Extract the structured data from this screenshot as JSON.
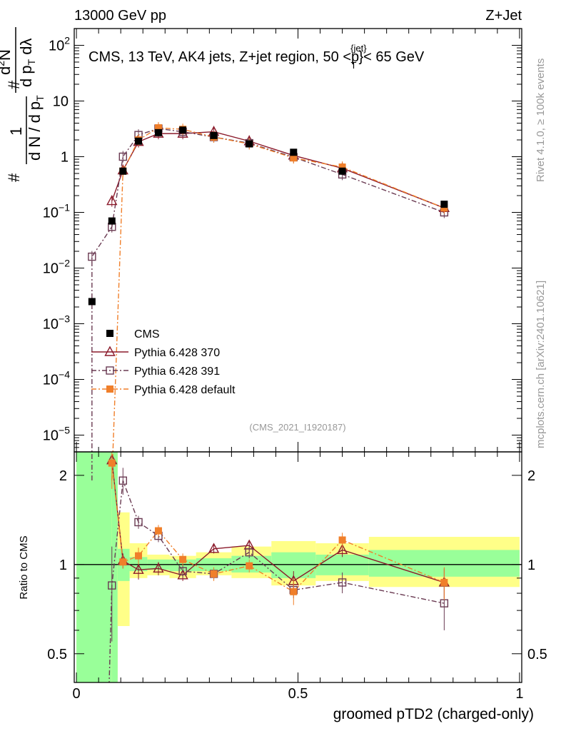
{
  "header": {
    "left": "13000 GeV pp",
    "right": "Z+Jet"
  },
  "side": {
    "rivet": "Rivet 4.1.0, ≥ 100k events",
    "mcplots": "mcplots.cern.ch [arXiv:2401.10621]"
  },
  "chart_data": {
    "type": "scatter",
    "title": "CMS, 13 TeV, AK4 jets, Z+jet region, 50 < p_T^{jet} < 65 GeV",
    "title_parts": {
      "main": "CMS, 13 TeV, AK4 jets, Z+jet region, 50 <p",
      "sub": "T",
      "sup": "{jet}",
      "end": "}< 65 GeV"
    },
    "analysis_tag": "(CMS_2021_I1920187)",
    "xlabel": "groomed pTD2 (charged-only)",
    "ylabel_top": {
      "num": "1",
      "frac_num_prefix": "d",
      "frac_num_sup": "2",
      "frac_num_suffix": "N",
      "den1": "d N / d p",
      "den1_sub": "T",
      "den2": "d p",
      "den2_sub": "T",
      "den2_suffix": " dλ",
      "hash": "#"
    },
    "ylabel_ratio": "Ratio to CMS",
    "xlim": [
      -0.005,
      1.005
    ],
    "ylim_top": [
      5e-06,
      200
    ],
    "ylim_ratio": [
      0.4,
      2.4
    ],
    "x_ticks": [
      0,
      0.5,
      1
    ],
    "x_tick_labels": [
      "0",
      "0.5",
      "1"
    ],
    "y_ticks_top": [
      1e-05,
      0.0001,
      0.001,
      0.01,
      0.1,
      1,
      10,
      100
    ],
    "y_tick_labels_top": [
      {
        "base": "10",
        "exp": "−5"
      },
      {
        "base": "10",
        "exp": "−4"
      },
      {
        "base": "10",
        "exp": "−3"
      },
      {
        "base": "10",
        "exp": "−2"
      },
      {
        "base": "10",
        "exp": "−1"
      },
      {
        "base": "1",
        "exp": ""
      },
      {
        "base": "10",
        "exp": ""
      },
      {
        "base": "10",
        "exp": "2"
      }
    ],
    "y_ticks_ratio": [
      0.5,
      1,
      2
    ],
    "y_tick_labels_ratio": [
      "0.5",
      "1",
      "2"
    ],
    "legend_position": "lower-left",
    "legend": [
      {
        "label": "CMS",
        "color": "#000000",
        "marker": "filled-square",
        "line": "none"
      },
      {
        "label": "Pythia 6.428 370",
        "color": "#8b1a2b",
        "marker": "open-triangle",
        "line": "solid"
      },
      {
        "label": "Pythia 6.428 391",
        "color": "#6a3a52",
        "marker": "open-square",
        "line": "dashdot"
      },
      {
        "label": "Pythia 6.428 default",
        "color": "#f07f2a",
        "marker": "filled-square",
        "line": "dashdot"
      }
    ],
    "x": [
      0.035,
      0.08,
      0.105,
      0.14,
      0.185,
      0.24,
      0.31,
      0.39,
      0.49,
      0.6,
      0.83
    ],
    "data": {
      "name": "CMS",
      "values": [
        0.0025,
        0.07,
        0.55,
        1.9,
        2.7,
        3.0,
        2.4,
        1.7,
        1.2,
        0.55,
        0.14
      ]
    },
    "series": [
      {
        "name": "Pythia 6.428 370",
        "values": [
          null,
          0.16,
          0.57,
          1.85,
          2.6,
          2.6,
          2.8,
          1.9,
          1.05,
          0.62,
          0.12
        ],
        "ratio": [
          null,
          2.25,
          1.03,
          0.96,
          0.97,
          0.92,
          1.13,
          1.16,
          0.88,
          1.12,
          0.87
        ],
        "ratio_err": [
          null,
          0.1,
          0.06,
          0.07,
          0.05,
          0.04,
          0.04,
          0.05,
          0.07,
          0.06,
          0.1
        ]
      },
      {
        "name": "Pythia 6.428 391",
        "values": [
          0.016,
          0.055,
          1.0,
          2.45,
          3.2,
          2.8,
          2.25,
          1.75,
          0.98,
          0.48,
          0.1
        ],
        "ratio": [
          null,
          0.85,
          1.92,
          1.39,
          1.25,
          0.95,
          0.93,
          1.1,
          0.82,
          0.87,
          0.74
        ],
        "ratio_err": [
          null,
          0.3,
          0.2,
          0.07,
          0.06,
          0.05,
          0.04,
          0.05,
          0.05,
          0.07,
          0.14
        ]
      },
      {
        "name": "Pythia 6.428 default",
        "values": [
          null,
          null,
          0.55,
          2.0,
          3.3,
          3.1,
          2.25,
          1.7,
          0.95,
          0.65,
          0.12
        ],
        "ratio": [
          null,
          2.2,
          1.02,
          1.07,
          1.3,
          1.04,
          0.93,
          0.99,
          0.81,
          1.21,
          0.87
        ],
        "ratio_err": [
          null,
          0.4,
          0.05,
          0.07,
          0.06,
          0.05,
          0.05,
          0.05,
          0.08,
          0.07,
          0.11
        ]
      }
    ],
    "ratio_bands": [
      {
        "x0": 0.0,
        "x1": 0.08,
        "inner": [
          0.3,
          2.6
        ],
        "outer": [
          0.3,
          2.6
        ]
      },
      {
        "x0": 0.08,
        "x1": 0.093,
        "inner": [
          0.3,
          2.6
        ],
        "outer": [
          0.3,
          2.6
        ]
      },
      {
        "x0": 0.093,
        "x1": 0.12,
        "inner": [
          0.88,
          1.13
        ],
        "outer": [
          0.62,
          1.5
        ]
      },
      {
        "x0": 0.12,
        "x1": 0.16,
        "inner": [
          0.95,
          1.06
        ],
        "outer": [
          0.9,
          1.18
        ]
      },
      {
        "x0": 0.16,
        "x1": 0.21,
        "inner": [
          0.96,
          1.04
        ],
        "outer": [
          0.92,
          1.08
        ]
      },
      {
        "x0": 0.21,
        "x1": 0.27,
        "inner": [
          0.95,
          1.04
        ],
        "outer": [
          0.9,
          1.07
        ]
      },
      {
        "x0": 0.27,
        "x1": 0.35,
        "inner": [
          0.95,
          1.05
        ],
        "outer": [
          0.92,
          1.1
        ]
      },
      {
        "x0": 0.35,
        "x1": 0.44,
        "inner": [
          0.94,
          1.07
        ],
        "outer": [
          0.9,
          1.15
        ]
      },
      {
        "x0": 0.44,
        "x1": 0.54,
        "inner": [
          0.9,
          1.1
        ],
        "outer": [
          0.85,
          1.2
        ]
      },
      {
        "x0": 0.54,
        "x1": 0.66,
        "inner": [
          0.92,
          1.08
        ],
        "outer": [
          0.88,
          1.18
        ]
      },
      {
        "x0": 0.66,
        "x1": 1.0,
        "inner": [
          0.91,
          1.12
        ],
        "outer": [
          0.84,
          1.24
        ]
      }
    ]
  }
}
